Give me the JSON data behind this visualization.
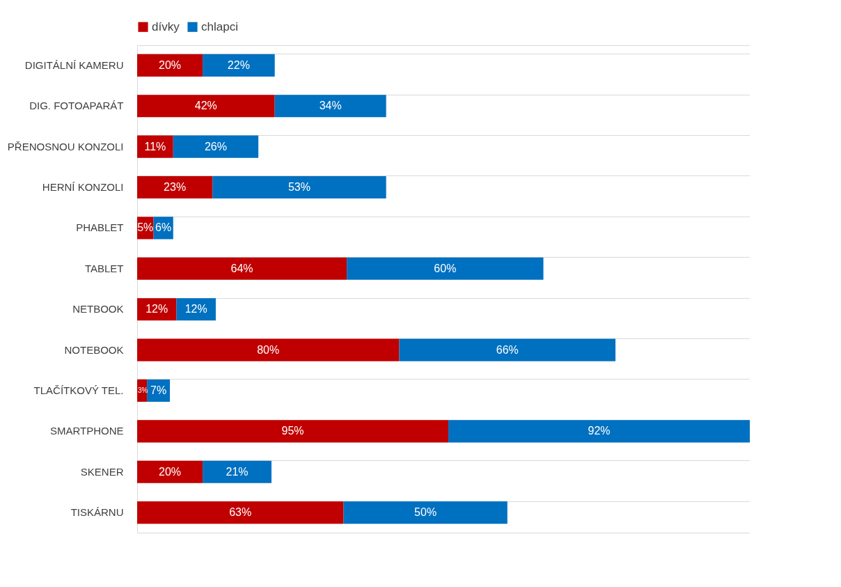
{
  "chart_data": {
    "type": "bar",
    "orientation": "horizontal",
    "stacked": true,
    "grid": "y",
    "legend": "top",
    "tick_labels": "y",
    "categories": [
      "DIGITÁLNÍ KAMERU",
      "DIG. FOTOAPARÁT",
      "PŘENOSNOU KONZOLI",
      "HERNÍ KONZOLI",
      "PHABLET",
      "TABLET",
      "NETBOOK",
      "NOTEBOOK",
      "TLAČÍTKOVÝ TEL.",
      "SMARTPHONE",
      "SKENER",
      "TISKÁRNU"
    ],
    "series": [
      {
        "name": "dívky",
        "color": "#c00000",
        "values": [
          20,
          42,
          11,
          23,
          5,
          64,
          12,
          80,
          3,
          95,
          20,
          63
        ],
        "value_labels": [
          "20%",
          "42%",
          "11%",
          "23%",
          "5%",
          "64%",
          "12%",
          "80%",
          "3%",
          "95%",
          "20%",
          "63%"
        ]
      },
      {
        "name": "chlapci",
        "color": "#0070c0",
        "values": [
          22,
          34,
          26,
          53,
          6,
          60,
          12,
          66,
          7,
          92,
          21,
          50
        ],
        "value_labels": [
          "22%",
          "34%",
          "26%",
          "53%",
          "6%",
          "60%",
          "12%",
          "66%",
          "7%",
          "92%",
          "21%",
          "50%"
        ]
      }
    ]
  }
}
